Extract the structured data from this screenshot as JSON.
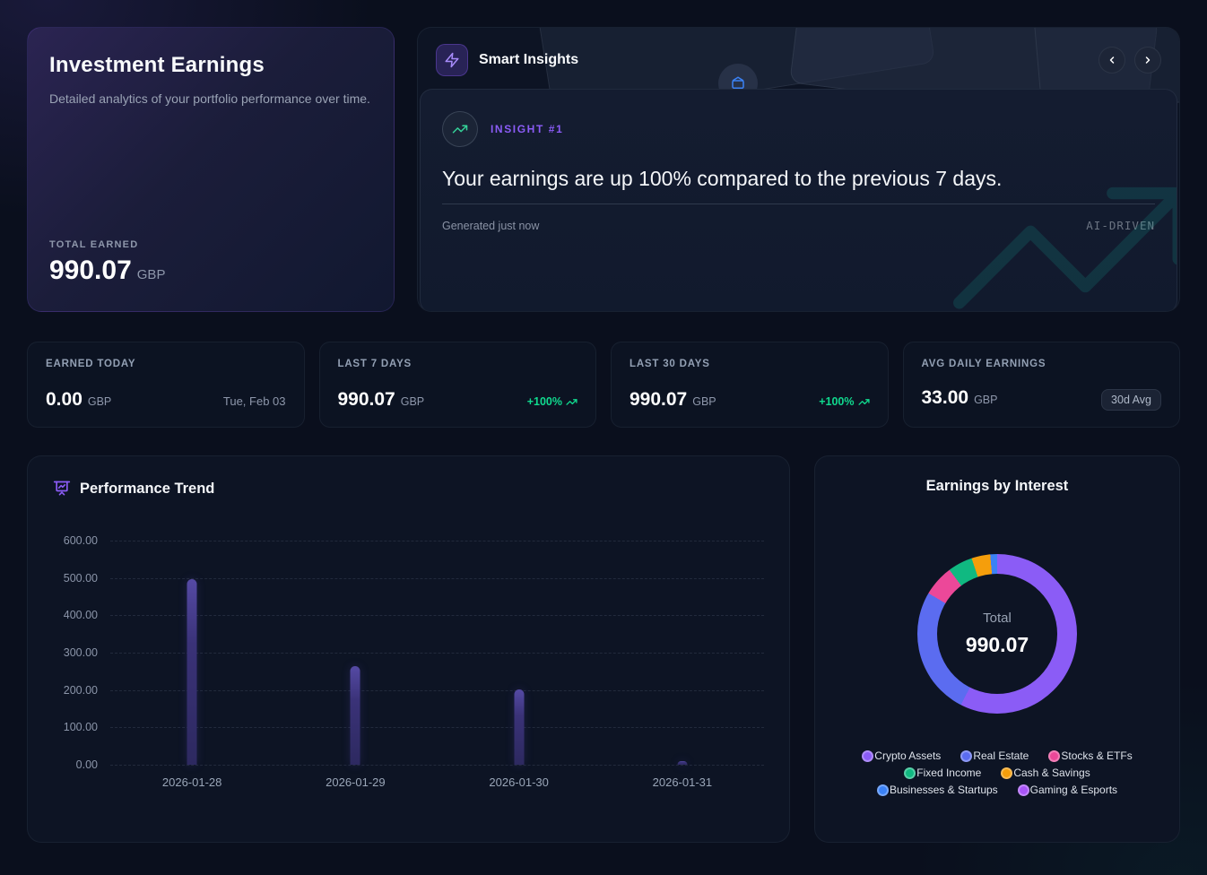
{
  "hero": {
    "title": "Investment Earnings",
    "subtitle": "Detailed analytics of your portfolio performance over time.",
    "total_label": "TOTAL EARNED",
    "total_value": "990.07",
    "currency": "GBP"
  },
  "insights": {
    "header": "Smart Insights",
    "badge": "INSIGHT #1",
    "headline": "Your earnings are up 100% compared to the previous 7 days.",
    "generated": "Generated just now",
    "watermark": "AI-DRIVEN"
  },
  "stats": [
    {
      "label": "EARNED TODAY",
      "value": "0.00",
      "currency": "GBP",
      "meta": "Tue, Feb 03",
      "meta_type": "date"
    },
    {
      "label": "LAST 7 DAYS",
      "value": "990.07",
      "currency": "GBP",
      "meta": "+100%",
      "meta_type": "positive"
    },
    {
      "label": "LAST 30 DAYS",
      "value": "990.07",
      "currency": "GBP",
      "meta": "+100%",
      "meta_type": "positive"
    },
    {
      "label": "AVG DAILY EARNINGS",
      "value": "33.00",
      "currency": "GBP",
      "meta": "30d Avg",
      "meta_type": "badge"
    }
  ],
  "chart_data": [
    {
      "type": "bar",
      "title": "Performance Trend",
      "categories": [
        "2026-01-28",
        "2026-01-29",
        "2026-01-30",
        "2026-01-31"
      ],
      "values": [
        497,
        264,
        201,
        10
      ],
      "ylim": [
        0,
        600
      ],
      "ytick_labels": [
        "600.00",
        "500.00",
        "400.00",
        "300.00",
        "200.00",
        "100.00",
        "0.00"
      ],
      "grid": true,
      "bar_color": "#4338a8",
      "legend_position": "none"
    },
    {
      "type": "pie",
      "title": "Earnings by Interest",
      "center_label": "Total",
      "center_value": "990.07",
      "segments": [
        {
          "label": "Crypto Assets",
          "color": "#8b5cf6",
          "percent": 57.5
        },
        {
          "label": "Real Estate",
          "color": "#5b6cf0",
          "percent": 26.0
        },
        {
          "label": "Stocks & ETFs",
          "color": "#ec4899",
          "percent": 6.3
        },
        {
          "label": "Fixed Income",
          "color": "#10b981",
          "percent": 5.0
        },
        {
          "label": "Cash & Savings",
          "color": "#f59e0b",
          "percent": 3.8
        },
        {
          "label": "Businesses & Startups",
          "color": "#3b82f6",
          "percent": 1.4
        },
        {
          "label": "Gaming & Esports",
          "color": "#a855f7",
          "percent": 0
        }
      ],
      "legend_rows": [
        [
          0,
          1,
          2
        ],
        [
          3,
          4
        ],
        [
          5,
          6
        ]
      ],
      "legend_position": "bottom"
    }
  ]
}
